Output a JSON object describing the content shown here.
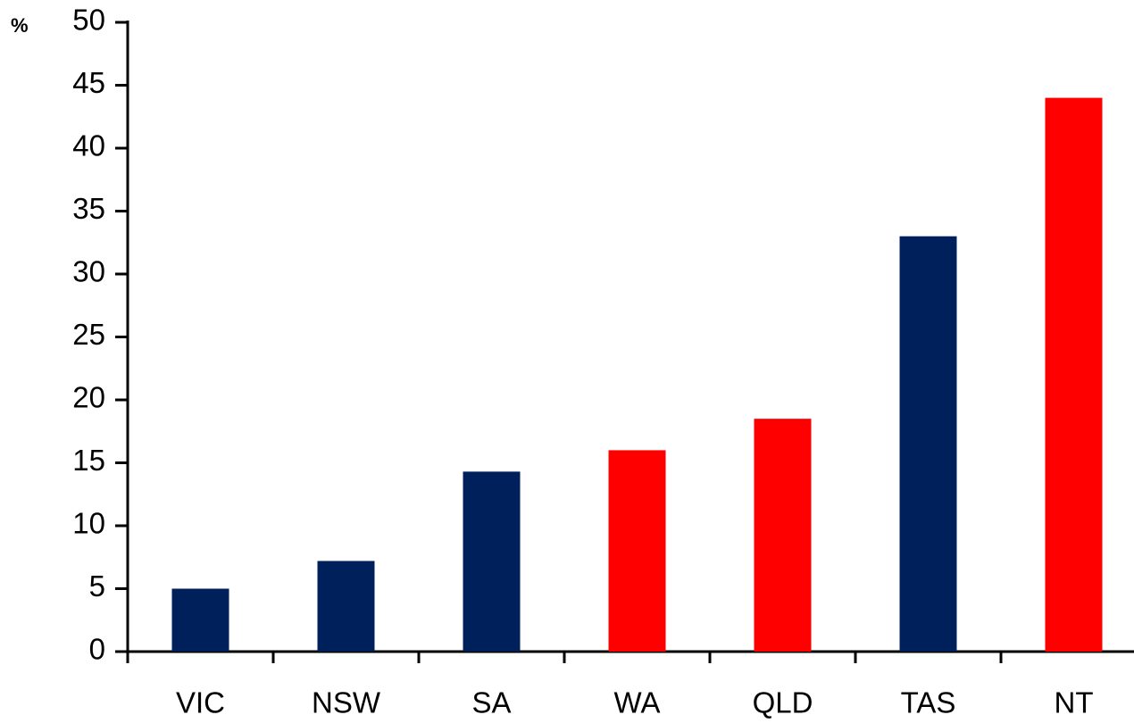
{
  "chart_data": {
    "type": "bar",
    "y_label": "%",
    "categories": [
      "VIC",
      "NSW",
      "SA",
      "WA",
      "QLD",
      "TAS",
      "NT"
    ],
    "values": [
      5,
      7.2,
      14.3,
      16,
      18.5,
      33,
      44
    ],
    "colors": [
      "#00205b",
      "#00205b",
      "#00205b",
      "#ff0000",
      "#ff0000",
      "#00205b",
      "#ff0000"
    ],
    "ylim": [
      0,
      50
    ],
    "yticks": [
      0,
      5,
      10,
      15,
      20,
      25,
      30,
      35,
      40,
      45,
      50
    ],
    "grid": false
  }
}
